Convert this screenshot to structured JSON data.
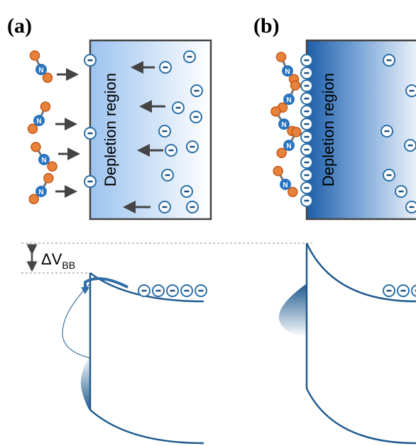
{
  "panels": [
    {
      "label": "(a)",
      "region_label": "Depletion region"
    },
    {
      "label": "(b)",
      "region_label": "Depletion region"
    }
  ],
  "molecule_atom": "N",
  "band_bending": {
    "symbol": "ΔV",
    "subscript": "BB"
  }
}
